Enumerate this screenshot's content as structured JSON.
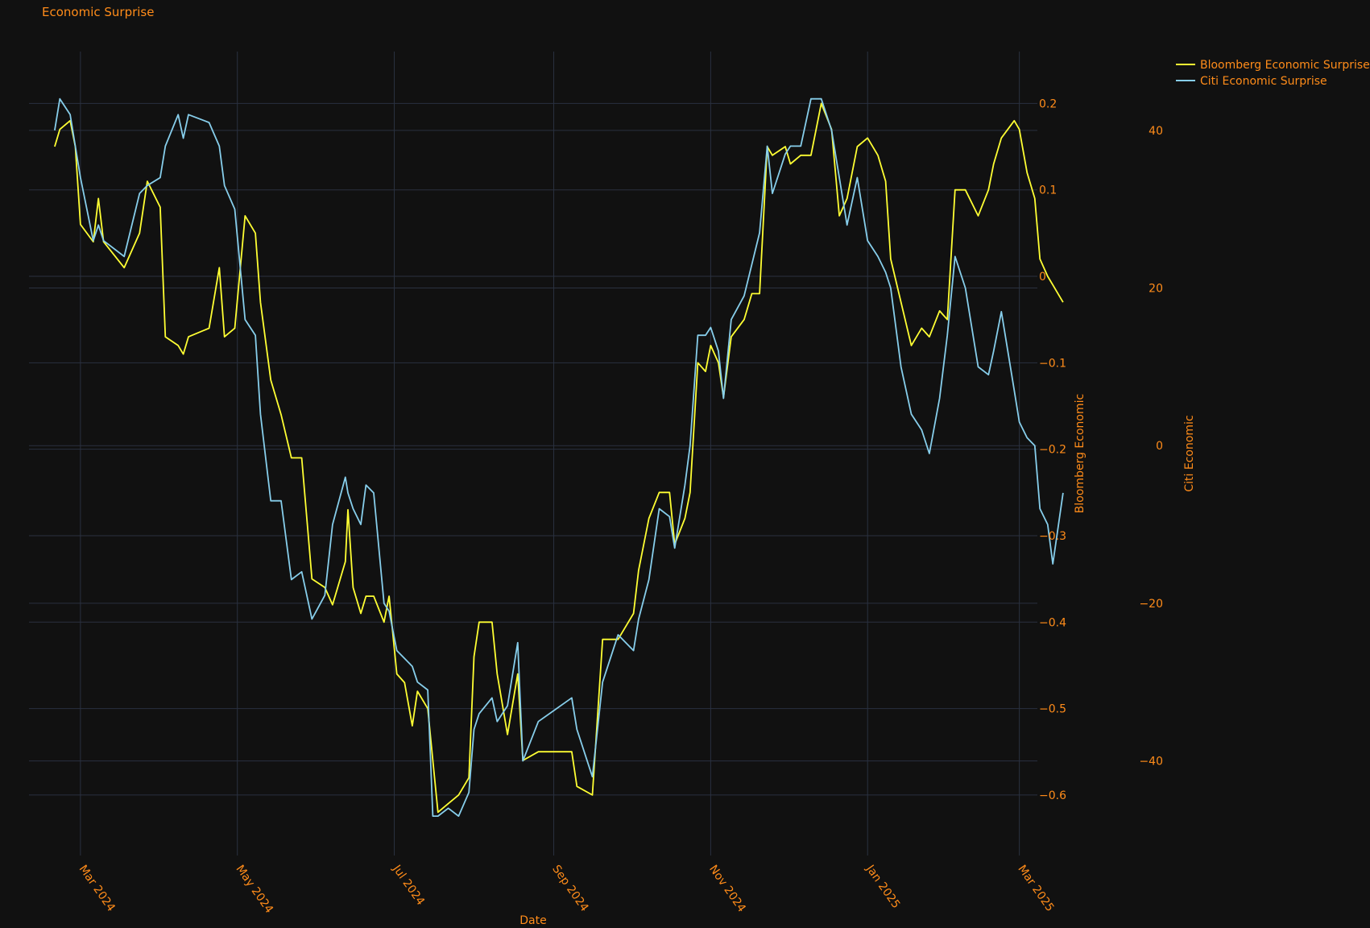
{
  "chart_data": {
    "type": "line",
    "title": "Economic Surprise",
    "xlabel": "Date",
    "y1label": "Bloomberg Economic",
    "y2label": "Citi Economic",
    "xlim": [
      "2024-02-10",
      "2025-03-08"
    ],
    "x_ticks": [
      {
        "date": "2024-03-01",
        "label": "Mar 2024"
      },
      {
        "date": "2024-05-01",
        "label": "May 2024"
      },
      {
        "date": "2024-07-01",
        "label": "Jul 2024"
      },
      {
        "date": "2024-09-01",
        "label": "Sep 2024"
      },
      {
        "date": "2024-11-01",
        "label": "Nov 2024"
      },
      {
        "date": "2025-01-01",
        "label": "Jan 2025"
      },
      {
        "date": "2025-03-01",
        "label": "Mar 2025"
      }
    ],
    "y1lim": [
      -0.67,
      0.26
    ],
    "y1_ticks": [
      {
        "value": 0.2,
        "label": "0.2"
      },
      {
        "value": 0.1,
        "label": "0.1"
      },
      {
        "value": 0,
        "label": "0"
      },
      {
        "value": -0.1,
        "label": "−0.1"
      },
      {
        "value": -0.2,
        "label": "−0.2"
      },
      {
        "value": -0.3,
        "label": "−0.3"
      },
      {
        "value": -0.4,
        "label": "−0.4"
      },
      {
        "value": -0.5,
        "label": "−0.5"
      },
      {
        "value": -0.6,
        "label": "−0.6"
      }
    ],
    "y2lim": [
      -52,
      50
    ],
    "y2_ticks": [
      {
        "value": 40,
        "label": "40"
      },
      {
        "value": 20,
        "label": "20"
      },
      {
        "value": 0,
        "label": "0"
      },
      {
        "value": -20,
        "label": "−20"
      },
      {
        "value": -40,
        "label": "−40"
      }
    ],
    "grid": true,
    "legend_position": "top-right",
    "series": [
      {
        "name": "Bloomberg Economic Surprise",
        "axis": "y1",
        "color": "#ffff33",
        "points": [
          [
            "2024-02-20",
            0.15
          ],
          [
            "2024-02-22",
            0.17
          ],
          [
            "2024-02-26",
            0.18
          ],
          [
            "2024-02-28",
            0.15
          ],
          [
            "2024-03-01",
            0.06
          ],
          [
            "2024-03-06",
            0.04
          ],
          [
            "2024-03-08",
            0.09
          ],
          [
            "2024-03-10",
            0.04
          ],
          [
            "2024-03-18",
            0.01
          ],
          [
            "2024-03-24",
            0.05
          ],
          [
            "2024-03-27",
            0.11
          ],
          [
            "2024-04-01",
            0.08
          ],
          [
            "2024-04-03",
            -0.07
          ],
          [
            "2024-04-08",
            -0.08
          ],
          [
            "2024-04-10",
            -0.09
          ],
          [
            "2024-04-12",
            -0.07
          ],
          [
            "2024-04-20",
            -0.06
          ],
          [
            "2024-04-24",
            0.01
          ],
          [
            "2024-04-26",
            -0.07
          ],
          [
            "2024-04-30",
            -0.06
          ],
          [
            "2024-05-04",
            0.07
          ],
          [
            "2024-05-08",
            0.05
          ],
          [
            "2024-05-10",
            -0.03
          ],
          [
            "2024-05-14",
            -0.12
          ],
          [
            "2024-05-18",
            -0.16
          ],
          [
            "2024-05-22",
            -0.21
          ],
          [
            "2024-05-26",
            -0.21
          ],
          [
            "2024-05-30",
            -0.35
          ],
          [
            "2024-06-04",
            -0.36
          ],
          [
            "2024-06-07",
            -0.38
          ],
          [
            "2024-06-12",
            -0.33
          ],
          [
            "2024-06-13",
            -0.27
          ],
          [
            "2024-06-15",
            -0.36
          ],
          [
            "2024-06-18",
            -0.39
          ],
          [
            "2024-06-20",
            -0.37
          ],
          [
            "2024-06-23",
            -0.37
          ],
          [
            "2024-06-27",
            -0.4
          ],
          [
            "2024-06-29",
            -0.37
          ],
          [
            "2024-07-02",
            -0.46
          ],
          [
            "2024-07-05",
            -0.47
          ],
          [
            "2024-07-08",
            -0.52
          ],
          [
            "2024-07-10",
            -0.48
          ],
          [
            "2024-07-14",
            -0.5
          ],
          [
            "2024-07-16",
            -0.56
          ],
          [
            "2024-07-18",
            -0.62
          ],
          [
            "2024-07-22",
            -0.61
          ],
          [
            "2024-07-26",
            -0.6
          ],
          [
            "2024-07-30",
            -0.58
          ],
          [
            "2024-08-01",
            -0.44
          ],
          [
            "2024-08-03",
            -0.4
          ],
          [
            "2024-08-08",
            -0.4
          ],
          [
            "2024-08-10",
            -0.46
          ],
          [
            "2024-08-14",
            -0.53
          ],
          [
            "2024-08-18",
            -0.46
          ],
          [
            "2024-08-20",
            -0.56
          ],
          [
            "2024-08-26",
            -0.55
          ],
          [
            "2024-09-08",
            -0.55
          ],
          [
            "2024-09-10",
            -0.59
          ],
          [
            "2024-09-16",
            -0.6
          ],
          [
            "2024-09-20",
            -0.42
          ],
          [
            "2024-09-26",
            -0.42
          ],
          [
            "2024-10-02",
            -0.39
          ],
          [
            "2024-10-04",
            -0.34
          ],
          [
            "2024-10-08",
            -0.28
          ],
          [
            "2024-10-12",
            -0.25
          ],
          [
            "2024-10-16",
            -0.25
          ],
          [
            "2024-10-18",
            -0.31
          ],
          [
            "2024-10-22",
            -0.28
          ],
          [
            "2024-10-24",
            -0.25
          ],
          [
            "2024-10-27",
            -0.1
          ],
          [
            "2024-10-30",
            -0.11
          ],
          [
            "2024-11-01",
            -0.08
          ],
          [
            "2024-11-04",
            -0.1
          ],
          [
            "2024-11-06",
            -0.14
          ],
          [
            "2024-11-09",
            -0.07
          ],
          [
            "2024-11-14",
            -0.05
          ],
          [
            "2024-11-17",
            -0.02
          ],
          [
            "2024-11-20",
            -0.02
          ],
          [
            "2024-11-23",
            0.15
          ],
          [
            "2024-11-25",
            0.14
          ],
          [
            "2024-11-30",
            0.15
          ],
          [
            "2024-12-02",
            0.13
          ],
          [
            "2024-12-06",
            0.14
          ],
          [
            "2024-12-10",
            0.14
          ],
          [
            "2024-12-14",
            0.2
          ],
          [
            "2024-12-18",
            0.17
          ],
          [
            "2024-12-21",
            0.07
          ],
          [
            "2024-12-24",
            0.09
          ],
          [
            "2024-12-28",
            0.15
          ],
          [
            "2025-01-01",
            0.16
          ],
          [
            "2025-01-05",
            0.14
          ],
          [
            "2025-01-08",
            0.11
          ],
          [
            "2025-01-10",
            0.02
          ],
          [
            "2025-01-14",
            -0.03
          ],
          [
            "2025-01-18",
            -0.08
          ],
          [
            "2025-01-22",
            -0.06
          ],
          [
            "2025-01-25",
            -0.07
          ],
          [
            "2025-01-29",
            -0.04
          ],
          [
            "2025-02-01",
            -0.05
          ],
          [
            "2025-02-04",
            0.1
          ],
          [
            "2025-02-08",
            0.1
          ],
          [
            "2025-02-13",
            0.07
          ],
          [
            "2025-02-17",
            0.1
          ],
          [
            "2025-02-19",
            0.13
          ],
          [
            "2025-02-22",
            0.16
          ],
          [
            "2025-02-27",
            0.18
          ],
          [
            "2025-03-01",
            0.17
          ],
          [
            "2025-03-04",
            0.12
          ],
          [
            "2025-03-07",
            0.09
          ],
          [
            "2025-03-09",
            0.02
          ],
          [
            "2025-03-12",
            0.0
          ],
          [
            "2025-03-14",
            -0.01
          ],
          [
            "2025-03-18",
            -0.03
          ]
        ]
      },
      {
        "name": "Citi Economic Surprise",
        "axis": "y2",
        "color": "#87ceeb",
        "points": [
          [
            "2024-02-20",
            40
          ],
          [
            "2024-02-22",
            44
          ],
          [
            "2024-02-26",
            42
          ],
          [
            "2024-02-28",
            38
          ],
          [
            "2024-03-01",
            34
          ],
          [
            "2024-03-06",
            26
          ],
          [
            "2024-03-08",
            28
          ],
          [
            "2024-03-10",
            26
          ],
          [
            "2024-03-18",
            24
          ],
          [
            "2024-03-24",
            32
          ],
          [
            "2024-03-27",
            33
          ],
          [
            "2024-04-01",
            34
          ],
          [
            "2024-04-03",
            38
          ],
          [
            "2024-04-08",
            42
          ],
          [
            "2024-04-10",
            39
          ],
          [
            "2024-04-12",
            42
          ],
          [
            "2024-04-20",
            41
          ],
          [
            "2024-04-24",
            38
          ],
          [
            "2024-04-26",
            33
          ],
          [
            "2024-04-30",
            30
          ],
          [
            "2024-05-04",
            16
          ],
          [
            "2024-05-08",
            14
          ],
          [
            "2024-05-10",
            4
          ],
          [
            "2024-05-14",
            -7
          ],
          [
            "2024-05-18",
            -7
          ],
          [
            "2024-05-22",
            -17
          ],
          [
            "2024-05-26",
            -16
          ],
          [
            "2024-05-30",
            -22
          ],
          [
            "2024-06-04",
            -19
          ],
          [
            "2024-06-07",
            -10
          ],
          [
            "2024-06-12",
            -4
          ],
          [
            "2024-06-13",
            -6
          ],
          [
            "2024-06-15",
            -8
          ],
          [
            "2024-06-18",
            -10
          ],
          [
            "2024-06-20",
            -5
          ],
          [
            "2024-06-23",
            -6
          ],
          [
            "2024-06-27",
            -20
          ],
          [
            "2024-06-29",
            -21
          ],
          [
            "2024-07-02",
            -26
          ],
          [
            "2024-07-05",
            -27
          ],
          [
            "2024-07-08",
            -28
          ],
          [
            "2024-07-10",
            -30
          ],
          [
            "2024-07-14",
            -31
          ],
          [
            "2024-07-16",
            -47
          ],
          [
            "2024-07-18",
            -47
          ],
          [
            "2024-07-22",
            -46
          ],
          [
            "2024-07-26",
            -47
          ],
          [
            "2024-07-30",
            -44
          ],
          [
            "2024-08-01",
            -36
          ],
          [
            "2024-08-03",
            -34
          ],
          [
            "2024-08-08",
            -32
          ],
          [
            "2024-08-10",
            -35
          ],
          [
            "2024-08-14",
            -33
          ],
          [
            "2024-08-18",
            -25
          ],
          [
            "2024-08-20",
            -40
          ],
          [
            "2024-08-26",
            -35
          ],
          [
            "2024-09-08",
            -32
          ],
          [
            "2024-09-10",
            -36
          ],
          [
            "2024-09-16",
            -42
          ],
          [
            "2024-09-20",
            -30
          ],
          [
            "2024-09-26",
            -24
          ],
          [
            "2024-10-02",
            -26
          ],
          [
            "2024-10-04",
            -22
          ],
          [
            "2024-10-08",
            -17
          ],
          [
            "2024-10-12",
            -8
          ],
          [
            "2024-10-16",
            -9
          ],
          [
            "2024-10-18",
            -13
          ],
          [
            "2024-10-22",
            -5
          ],
          [
            "2024-10-24",
            0
          ],
          [
            "2024-10-27",
            14
          ],
          [
            "2024-10-30",
            14
          ],
          [
            "2024-11-01",
            15
          ],
          [
            "2024-11-04",
            12
          ],
          [
            "2024-11-06",
            6
          ],
          [
            "2024-11-09",
            16
          ],
          [
            "2024-11-14",
            19
          ],
          [
            "2024-11-17",
            23
          ],
          [
            "2024-11-20",
            27
          ],
          [
            "2024-11-23",
            38
          ],
          [
            "2024-11-25",
            32
          ],
          [
            "2024-11-30",
            37
          ],
          [
            "2024-12-02",
            38
          ],
          [
            "2024-12-06",
            38
          ],
          [
            "2024-12-10",
            44
          ],
          [
            "2024-12-14",
            44
          ],
          [
            "2024-12-18",
            40
          ],
          [
            "2024-12-21",
            34
          ],
          [
            "2024-12-24",
            28
          ],
          [
            "2024-12-28",
            34
          ],
          [
            "2025-01-01",
            26
          ],
          [
            "2025-01-05",
            24
          ],
          [
            "2025-01-08",
            22
          ],
          [
            "2025-01-10",
            20
          ],
          [
            "2025-01-14",
            10
          ],
          [
            "2025-01-18",
            4
          ],
          [
            "2025-01-22",
            2
          ],
          [
            "2025-01-25",
            -1
          ],
          [
            "2025-01-29",
            6
          ],
          [
            "2025-02-01",
            14
          ],
          [
            "2025-02-04",
            24
          ],
          [
            "2025-02-08",
            20
          ],
          [
            "2025-02-13",
            10
          ],
          [
            "2025-02-17",
            9
          ],
          [
            "2025-02-19",
            12
          ],
          [
            "2025-02-22",
            17
          ],
          [
            "2025-02-27",
            7
          ],
          [
            "2025-03-01",
            3
          ],
          [
            "2025-03-04",
            1
          ],
          [
            "2025-03-07",
            0
          ],
          [
            "2025-03-09",
            -8
          ],
          [
            "2025-03-12",
            -10
          ],
          [
            "2025-03-14",
            -15
          ],
          [
            "2025-03-18",
            -6
          ]
        ]
      }
    ]
  }
}
